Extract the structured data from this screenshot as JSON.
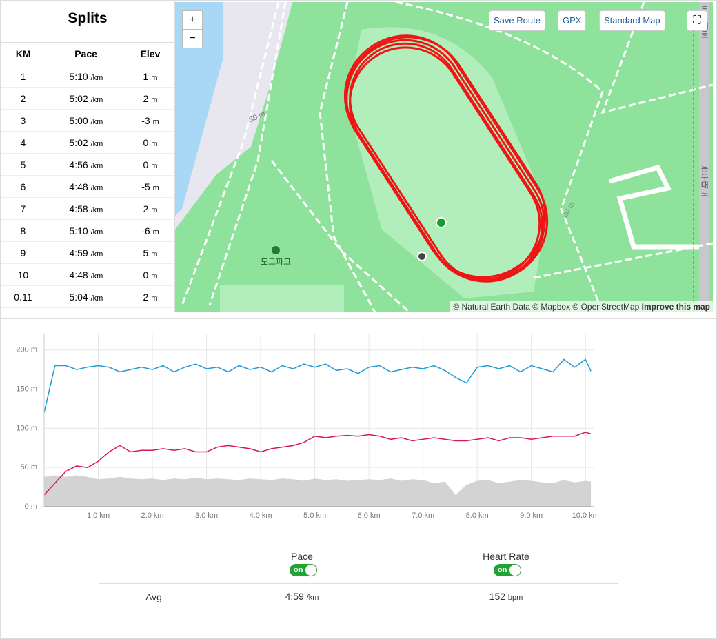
{
  "splits": {
    "title": "Splits",
    "headers": [
      "KM",
      "Pace",
      "Elev"
    ],
    "rows": [
      {
        "km": "1",
        "pace": "5:10",
        "pace_unit": "/km",
        "elev": "1",
        "elev_unit": "m"
      },
      {
        "km": "2",
        "pace": "5:02",
        "pace_unit": "/km",
        "elev": "2",
        "elev_unit": "m"
      },
      {
        "km": "3",
        "pace": "5:00",
        "pace_unit": "/km",
        "elev": "-3",
        "elev_unit": "m"
      },
      {
        "km": "4",
        "pace": "5:02",
        "pace_unit": "/km",
        "elev": "0",
        "elev_unit": "m"
      },
      {
        "km": "5",
        "pace": "4:56",
        "pace_unit": "/km",
        "elev": "0",
        "elev_unit": "m"
      },
      {
        "km": "6",
        "pace": "4:48",
        "pace_unit": "/km",
        "elev": "-5",
        "elev_unit": "m"
      },
      {
        "km": "7",
        "pace": "4:58",
        "pace_unit": "/km",
        "elev": "2",
        "elev_unit": "m"
      },
      {
        "km": "8",
        "pace": "5:10",
        "pace_unit": "/km",
        "elev": "-6",
        "elev_unit": "m"
      },
      {
        "km": "9",
        "pace": "4:59",
        "pace_unit": "/km",
        "elev": "5",
        "elev_unit": "m"
      },
      {
        "km": "10",
        "pace": "4:48",
        "pace_unit": "/km",
        "elev": "0",
        "elev_unit": "m"
      },
      {
        "km": "0.11",
        "pace": "5:04",
        "pace_unit": "/km",
        "elev": "2",
        "elev_unit": "m"
      }
    ]
  },
  "map": {
    "zoom_in": "+",
    "zoom_out": "−",
    "buttons": [
      "Save Route",
      "GPX",
      "Standard Map"
    ],
    "labels": [
      "30 m",
      "30 m",
      "도그파크",
      "동부대로",
      "동부대로"
    ],
    "attribution": "© Natural Earth Data © Mapbox © OpenStreetMap",
    "attribution_link": "Improve this map"
  },
  "chart_data": {
    "type": "line",
    "x": [
      0,
      0.2,
      0.4,
      0.6,
      0.8,
      1.0,
      1.2,
      1.4,
      1.6,
      1.8,
      2.0,
      2.2,
      2.4,
      2.6,
      2.8,
      3.0,
      3.2,
      3.4,
      3.6,
      3.8,
      4.0,
      4.2,
      4.4,
      4.6,
      4.8,
      5.0,
      5.2,
      5.4,
      5.6,
      5.8,
      6.0,
      6.2,
      6.4,
      6.6,
      6.8,
      7.0,
      7.2,
      7.4,
      7.6,
      7.8,
      8.0,
      8.2,
      8.4,
      8.6,
      8.8,
      9.0,
      9.2,
      9.4,
      9.6,
      9.8,
      10.0,
      10.1
    ],
    "xlim": [
      0,
      10.15
    ],
    "ylim": [
      0,
      220
    ],
    "xticks": [
      {
        "value": 1,
        "label": "1.0 km"
      },
      {
        "value": 2,
        "label": "2.0 km"
      },
      {
        "value": 3,
        "label": "3.0 km"
      },
      {
        "value": 4,
        "label": "4.0 km"
      },
      {
        "value": 5,
        "label": "5.0 km"
      },
      {
        "value": 6,
        "label": "6.0 km"
      },
      {
        "value": 7,
        "label": "7.0 km"
      },
      {
        "value": 8,
        "label": "8.0 km"
      },
      {
        "value": 9,
        "label": "9.0 km"
      },
      {
        "value": 10,
        "label": "10.0 km"
      }
    ],
    "yticks": [
      {
        "value": 0,
        "label": "0 m"
      },
      {
        "value": 50,
        "label": "50 m"
      },
      {
        "value": 100,
        "label": "100 m"
      },
      {
        "value": 150,
        "label": "150 m"
      },
      {
        "value": 200,
        "label": "200 m"
      }
    ],
    "grid": true,
    "series": [
      {
        "name": "Heart Rate",
        "color": "#1f9bd1",
        "values": [
          120,
          180,
          180,
          175,
          178,
          180,
          178,
          172,
          175,
          178,
          175,
          180,
          172,
          178,
          182,
          176,
          178,
          172,
          180,
          175,
          178,
          172,
          180,
          176,
          182,
          178,
          182,
          174,
          176,
          170,
          178,
          180,
          172,
          175,
          178,
          176,
          180,
          174,
          165,
          158,
          178,
          180,
          176,
          180,
          172,
          180,
          176,
          172,
          188,
          178,
          188,
          173
        ]
      },
      {
        "name": "Pace",
        "color": "#d7194a",
        "values": [
          15,
          30,
          45,
          52,
          50,
          58,
          70,
          78,
          70,
          72,
          72,
          74,
          72,
          74,
          70,
          70,
          76,
          78,
          76,
          74,
          70,
          74,
          76,
          78,
          82,
          90,
          88,
          90,
          91,
          90,
          92,
          90,
          86,
          88,
          84,
          86,
          88,
          86,
          84,
          84,
          86,
          88,
          84,
          88,
          88,
          86,
          88,
          90,
          90,
          90,
          95,
          93
        ]
      },
      {
        "color": "#d3d3d3",
        "fill": true,
        "values": [
          38,
          40,
          38,
          40,
          38,
          35,
          36,
          38,
          36,
          35,
          36,
          34,
          36,
          35,
          37,
          35,
          36,
          35,
          34,
          36,
          35,
          34,
          36,
          35,
          33,
          36,
          34,
          35,
          33,
          34,
          35,
          34,
          36,
          33,
          35,
          34,
          30,
          32,
          15,
          28,
          33,
          34,
          30,
          32,
          34,
          33,
          31,
          30,
          34,
          31,
          33,
          32
        ]
      }
    ]
  },
  "toggles": [
    {
      "label": "Pace",
      "state": "on"
    },
    {
      "label": "Heart Rate",
      "state": "on"
    }
  ],
  "avg": {
    "label": "Avg",
    "pace": "4:59",
    "pace_unit": "/km",
    "hr": "152",
    "hr_unit": "bpm"
  }
}
